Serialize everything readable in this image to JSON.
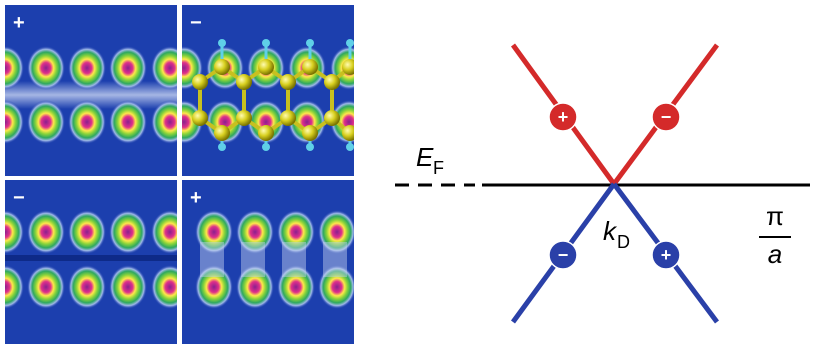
{
  "panels": [
    {
      "sign": "+"
    },
    {
      "sign": "−"
    },
    {
      "sign": "−"
    },
    {
      "sign": "+"
    }
  ],
  "diagram": {
    "fermi_label": "E",
    "fermi_subscript": "F",
    "k_label": "k",
    "k_subscript": "D",
    "fraction_numerator": "π",
    "fraction_denominator": "a",
    "band_signs": [
      "+",
      "−",
      "−",
      "+"
    ]
  }
}
